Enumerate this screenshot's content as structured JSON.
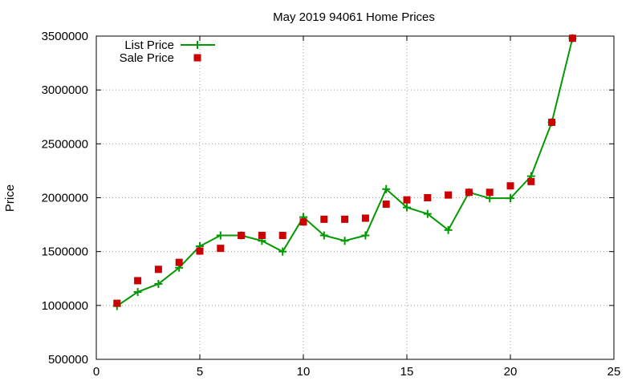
{
  "chart_data": {
    "type": "line",
    "title": "May 2019 94061 Home Prices",
    "xlabel": "",
    "ylabel": "Price",
    "xlim": [
      0,
      25
    ],
    "ylim": [
      500000,
      3500000
    ],
    "xticks": [
      0,
      5,
      10,
      15,
      20,
      25
    ],
    "yticks": [
      500000,
      1000000,
      1500000,
      2000000,
      2500000,
      3000000,
      3500000
    ],
    "grid": true,
    "legend_position": "top-left",
    "series": [
      {
        "name": "List Price",
        "style": "line with plus markers",
        "color": "#009900",
        "x": [
          1,
          2,
          3,
          4,
          5,
          6,
          7,
          8,
          9,
          10,
          11,
          12,
          13,
          14,
          15,
          16,
          17,
          18,
          19,
          20,
          21,
          22,
          23
        ],
        "y": [
          995000,
          1125000,
          1200000,
          1350000,
          1550000,
          1650000,
          1650000,
          1600000,
          1500000,
          1820000,
          1650000,
          1600000,
          1650000,
          2080000,
          1910000,
          1850000,
          1700000,
          2050000,
          1995000,
          1995000,
          2200000,
          2700000,
          3480000
        ]
      },
      {
        "name": "Sale Price",
        "style": "square markers",
        "color": "#cc0000",
        "x": [
          1,
          2,
          3,
          4,
          5,
          6,
          7,
          8,
          9,
          10,
          11,
          12,
          13,
          14,
          15,
          16,
          17,
          18,
          19,
          20,
          21,
          22,
          23
        ],
        "y": [
          1020000,
          1230000,
          1335000,
          1400000,
          1505000,
          1530000,
          1650000,
          1650000,
          1650000,
          1775000,
          1800000,
          1800000,
          1810000,
          1940000,
          1980000,
          2000000,
          2025000,
          2050000,
          2050000,
          2110000,
          2150000,
          2700000,
          3480000
        ]
      }
    ]
  }
}
